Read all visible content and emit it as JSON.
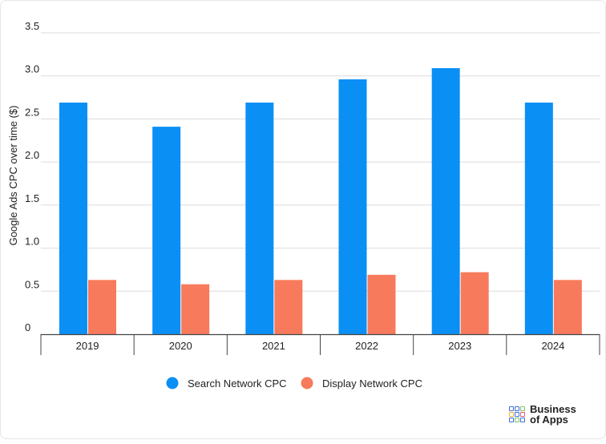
{
  "chart_data": {
    "type": "bar",
    "ylabel": "Google Ads CPC over time ($)",
    "categories": [
      "2019",
      "2020",
      "2021",
      "2022",
      "2023",
      "2024"
    ],
    "series": [
      {
        "name": "Search Network CPC",
        "color": "#0a8ff5",
        "values": [
          2.69,
          2.41,
          2.69,
          2.96,
          3.09,
          2.69
        ]
      },
      {
        "name": "Display Network CPC",
        "color": "#f87a5c",
        "values": [
          0.63,
          0.58,
          0.63,
          0.69,
          0.72,
          0.63
        ]
      }
    ],
    "ylim": [
      0,
      3.5
    ],
    "yticks": [
      "0",
      "0.5",
      "1.0",
      "1.5",
      "2.0",
      "2.5",
      "3.0",
      "3.5"
    ],
    "grid": true,
    "legend_position": "bottom"
  },
  "brand": {
    "logo_icon": "business-of-apps-grid-icon",
    "line1": "Business",
    "line2": "of Apps",
    "colors": [
      "#3d6fd8",
      "#3d6fd8",
      "#7cc36a",
      "#f2b233",
      "#3d6fd8",
      "#e25b7a",
      "#3d6fd8",
      "#7cc36a",
      "#3d6fd8"
    ]
  }
}
